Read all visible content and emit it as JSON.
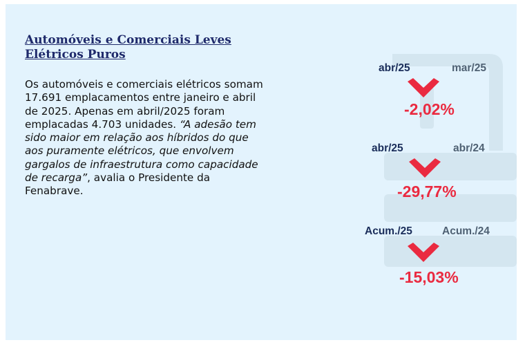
{
  "title_line1": "Automóveis e Comerciais Leves",
  "title_line2": "Elétricos Puros",
  "body": {
    "l1": "Os automóveis e comerciais elétricos somam",
    "l2": "17.691 emplacamentos entre janeiro e abril",
    "l3": "de 2025. Apenas em abril/2025 foram",
    "l4_plain": "emplacadas 4.703 unidades. ",
    "l4_italic": "“A adesão tem",
    "l5": "sido maior em relação aos híbridos do que",
    "l6": "aos puramente elétricos, que envolvem",
    "l7": "gargalos de infraestrutura como capacidade",
    "l8_italic": "de recarga”",
    "l8_plain": ", avalia o Presidente da",
    "l9": "Fenabrave."
  },
  "comparisons": [
    {
      "left": "abr/25",
      "right": "mar/25",
      "change": "-2,02%"
    },
    {
      "left": "abr/25",
      "right": "abr/24",
      "change": "-29,77%"
    },
    {
      "left": "Acum./25",
      "right": "Acum./24",
      "change": "-15,03%"
    }
  ],
  "colors": {
    "background": "#e3f3fd",
    "title": "#1f2a6b",
    "decrease": "#ea2a40",
    "label_current": "#1a2d5a",
    "label_previous": "#4f6173"
  },
  "icons": {
    "trend": "down-chevron-icon",
    "watermark": "car-charger-icon"
  }
}
